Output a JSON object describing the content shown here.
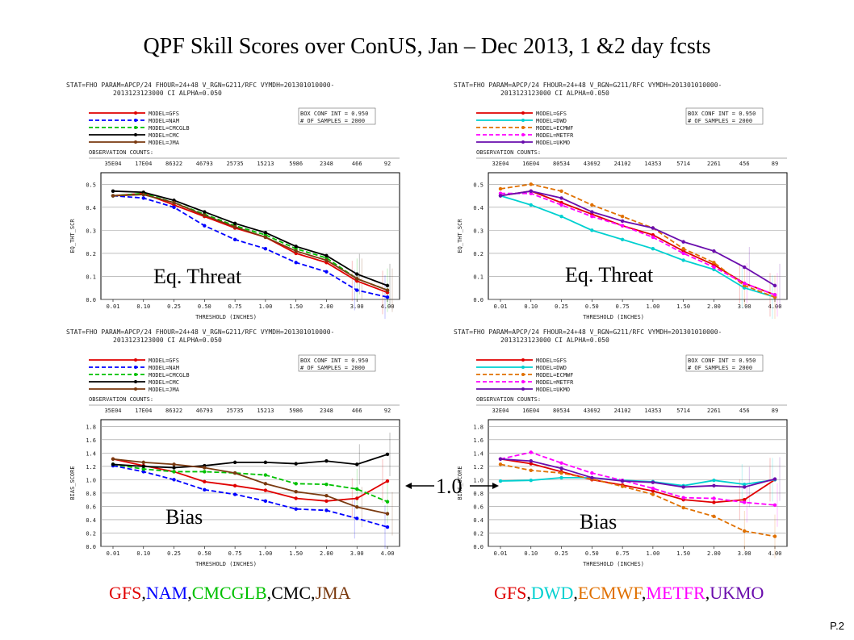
{
  "title": "QPF Skill Scores over ConUS, Jan – Dec 2013, 1 &2 day fcsts",
  "page_number": "P.2",
  "one_label": "1.0",
  "colors": {
    "GFS": "#e00000",
    "NAM": "#0000ff",
    "CMCGLB": "#00c000",
    "CMC": "#000000",
    "JMA": "#7a3a10",
    "DWD": "#00d0d0",
    "ECMWF": "#e07000",
    "METFR": "#ff00ff",
    "UKMO": "#6a0dad"
  },
  "left_legend": [
    {
      "text": "GFS",
      "color": "#e00000"
    },
    {
      "text": ",",
      "color": "#000"
    },
    {
      "text": "NAM",
      "color": "#0000ff"
    },
    {
      "text": ",",
      "color": "#000"
    },
    {
      "text": "CMCGLB",
      "color": "#00c000"
    },
    {
      "text": ",",
      "color": "#000"
    },
    {
      "text": "CMC",
      "color": "#000000"
    },
    {
      "text": ",",
      "color": "#000"
    },
    {
      "text": "JMA",
      "color": "#7a3a10"
    }
  ],
  "right_legend": [
    {
      "text": "GFS",
      "color": "#e00000"
    },
    {
      "text": ",",
      "color": "#000"
    },
    {
      "text": "DWD",
      "color": "#00d0d0"
    },
    {
      "text": ",",
      "color": "#000"
    },
    {
      "text": "ECMWF",
      "color": "#e07000"
    },
    {
      "text": ",",
      "color": "#000"
    },
    {
      "text": "METFR",
      "color": "#ff00ff"
    },
    {
      "text": ",",
      "color": "#000"
    },
    {
      "text": "UKMO",
      "color": "#6a0dad"
    }
  ],
  "chart_data": [
    {
      "type": "line",
      "header": [
        "STAT=FHO PARAM=APCP/24 FHOUR=24+48 V_RGN=G211/RFC VYMDH=201301010000-",
        "2013123123000 CI ALPHA=0.050"
      ],
      "box_text": [
        "BOX CONF INT = 0.950",
        "# OF SAMPLES = 2000"
      ],
      "obs_label": "OBSERVATION COUNTS:",
      "obs_counts": [
        "35E04",
        "17E04",
        "86322",
        "46793",
        "25735",
        "15213",
        "5986",
        "2348",
        "466",
        "92"
      ],
      "categories": [
        "0.01",
        "0.10",
        "0.25",
        "0.50",
        "0.75",
        "1.00",
        "1.50",
        "2.00",
        "3.00",
        "4.00"
      ],
      "ylabel": "EQ_THT_SCR",
      "xlabel": "THRESHOLD (INCHES)",
      "yticks": [
        "0.0",
        "0.1",
        "0.2",
        "0.3",
        "0.4",
        "0.5"
      ],
      "ylim": [
        0,
        0.55
      ],
      "big_label": "Eq. Threat",
      "series": [
        {
          "name": "MODEL=GFS",
          "color": "#e00000",
          "dash": false,
          "values": [
            0.45,
            0.46,
            0.41,
            0.36,
            0.31,
            0.27,
            0.2,
            0.16,
            0.08,
            0.03
          ]
        },
        {
          "name": "MODEL=NAM",
          "color": "#0000ff",
          "dash": true,
          "values": [
            0.45,
            0.44,
            0.4,
            0.32,
            0.26,
            0.22,
            0.16,
            0.12,
            0.04,
            0.01
          ]
        },
        {
          "name": "MODEL=CMCGLB",
          "color": "#00c000",
          "dash": true,
          "values": [
            0.45,
            0.46,
            0.42,
            0.37,
            0.32,
            0.28,
            0.22,
            0.18,
            0.09,
            0.04
          ]
        },
        {
          "name": "MODEL=CMC",
          "color": "#000000",
          "dash": false,
          "values": [
            0.47,
            0.465,
            0.43,
            0.38,
            0.33,
            0.29,
            0.23,
            0.19,
            0.11,
            0.06
          ]
        },
        {
          "name": "MODEL=JMA",
          "color": "#7a3a10",
          "dash": false,
          "values": [
            0.45,
            0.455,
            0.42,
            0.365,
            0.315,
            0.27,
            0.21,
            0.17,
            0.09,
            0.04
          ]
        }
      ]
    },
    {
      "type": "line",
      "header": [
        "STAT=FHO PARAM=APCP/24 FHOUR=24+48 V_RGN=G211/RFC VYMDH=201301010000-",
        "2013123123000 CI ALPHA=0.050"
      ],
      "box_text": [
        "BOX CONF INT = 0.950",
        "# OF SAMPLES = 2000"
      ],
      "obs_label": "OBSERVATION COUNTS:",
      "obs_counts": [
        "32E04",
        "16E04",
        "80534",
        "43692",
        "24102",
        "14353",
        "5714",
        "2261",
        "456",
        "89"
      ],
      "categories": [
        "0.01",
        "0.10",
        "0.25",
        "0.50",
        "0.75",
        "1.00",
        "1.50",
        "2.00",
        "3.00",
        "4.00"
      ],
      "ylabel": "EQ_THT_SCR",
      "xlabel": "THRESHOLD (INCHES)",
      "yticks": [
        "0.0",
        "0.1",
        "0.2",
        "0.3",
        "0.4",
        "0.5"
      ],
      "ylim": [
        0,
        0.55
      ],
      "big_label": "Eq. Threat",
      "series": [
        {
          "name": "MODEL=GFS",
          "color": "#e00000",
          "dash": false,
          "values": [
            0.45,
            0.47,
            0.42,
            0.37,
            0.32,
            0.28,
            0.21,
            0.15,
            0.07,
            0.02
          ]
        },
        {
          "name": "MODEL=DWD",
          "color": "#00d0d0",
          "dash": false,
          "values": [
            0.45,
            0.41,
            0.36,
            0.3,
            0.26,
            0.22,
            0.17,
            0.13,
            0.05,
            0.01
          ]
        },
        {
          "name": "MODEL=ECMWF",
          "color": "#e07000",
          "dash": true,
          "values": [
            0.48,
            0.5,
            0.47,
            0.41,
            0.36,
            0.31,
            0.22,
            0.16,
            0.06,
            0.01
          ]
        },
        {
          "name": "MODEL=METFR",
          "color": "#ff00ff",
          "dash": true,
          "values": [
            0.46,
            0.46,
            0.41,
            0.36,
            0.32,
            0.27,
            0.2,
            0.14,
            0.07,
            0.02
          ]
        },
        {
          "name": "MODEL=UKMO",
          "color": "#6a0dad",
          "dash": false,
          "values": [
            0.45,
            0.47,
            0.44,
            0.38,
            0.34,
            0.31,
            0.25,
            0.21,
            0.14,
            0.06
          ]
        }
      ]
    },
    {
      "type": "line",
      "header": [
        "STAT=FHO PARAM=APCP/24 FHOUR=24+48 V_RGN=G211/RFC VYMDH=201301010000-",
        "2013123123000 CI ALPHA=0.050"
      ],
      "box_text": [
        "BOX CONF INT = 0.950",
        "# OF SAMPLES = 2000"
      ],
      "obs_label": "OBSERVATION COUNTS:",
      "obs_counts": [
        "35E04",
        "17E04",
        "86322",
        "46793",
        "25735",
        "15213",
        "5986",
        "2348",
        "466",
        "92"
      ],
      "categories": [
        "0.01",
        "0.10",
        "0.25",
        "0.50",
        "0.75",
        "1.00",
        "1.50",
        "2.00",
        "3.00",
        "4.00"
      ],
      "ylabel": "BIAS_SCORE",
      "xlabel": "THRESHOLD (INCHES)",
      "yticks": [
        "0.0",
        "0.2",
        "0.4",
        "0.6",
        "0.8",
        "1.0",
        "1.2",
        "1.4",
        "1.6",
        "1.8"
      ],
      "ylim": [
        0,
        1.9
      ],
      "big_label": "Bias",
      "series": [
        {
          "name": "MODEL=GFS",
          "color": "#e00000",
          "dash": false,
          "values": [
            1.31,
            1.21,
            1.12,
            0.97,
            0.91,
            0.84,
            0.72,
            0.68,
            0.72,
            0.98
          ]
        },
        {
          "name": "MODEL=NAM",
          "color": "#0000ff",
          "dash": true,
          "values": [
            1.21,
            1.12,
            1.0,
            0.85,
            0.78,
            0.68,
            0.56,
            0.54,
            0.42,
            0.29
          ]
        },
        {
          "name": "MODEL=CMCGLB",
          "color": "#00c000",
          "dash": true,
          "values": [
            1.23,
            1.16,
            1.12,
            1.12,
            1.1,
            1.07,
            0.94,
            0.93,
            0.86,
            0.67
          ]
        },
        {
          "name": "MODEL=CMC",
          "color": "#000000",
          "dash": false,
          "values": [
            1.23,
            1.2,
            1.18,
            1.21,
            1.26,
            1.26,
            1.24,
            1.28,
            1.23,
            1.38
          ]
        },
        {
          "name": "MODEL=JMA",
          "color": "#7a3a10",
          "dash": false,
          "values": [
            1.31,
            1.26,
            1.23,
            1.18,
            1.1,
            0.94,
            0.82,
            0.76,
            0.59,
            0.49
          ]
        }
      ]
    },
    {
      "type": "line",
      "header": [
        "STAT=FHO PARAM=APCP/24 FHOUR=24+48 V_RGN=G211/RFC VYMDH=201301010000-",
        "2013123123000 CI ALPHA=0.050"
      ],
      "box_text": [
        "BOX CONF INT = 0.950",
        "# OF SAMPLES = 2000"
      ],
      "obs_label": "OBSERVATION COUNTS:",
      "obs_counts": [
        "32E04",
        "16E04",
        "80534",
        "43692",
        "24102",
        "14353",
        "5714",
        "2261",
        "456",
        "89"
      ],
      "categories": [
        "0.01",
        "0.10",
        "0.25",
        "0.50",
        "0.75",
        "1.00",
        "1.50",
        "2.00",
        "3.00",
        "4.00"
      ],
      "ylabel": "BIAS_SCORE",
      "xlabel": "THRESHOLD (INCHES)",
      "yticks": [
        "0.0",
        "0.2",
        "0.4",
        "0.6",
        "0.8",
        "1.0",
        "1.2",
        "1.4",
        "1.6",
        "1.8"
      ],
      "ylim": [
        0,
        1.9
      ],
      "big_label": "Bias",
      "series": [
        {
          "name": "MODEL=GFS",
          "color": "#e00000",
          "dash": false,
          "values": [
            1.31,
            1.24,
            1.12,
            1.0,
            0.92,
            0.83,
            0.7,
            0.66,
            0.7,
            1.0
          ]
        },
        {
          "name": "MODEL=DWD",
          "color": "#00d0d0",
          "dash": false,
          "values": [
            0.98,
            0.99,
            1.03,
            1.03,
            0.99,
            0.97,
            0.91,
            0.99,
            0.93,
            1.0
          ]
        },
        {
          "name": "MODEL=ECMWF",
          "color": "#e07000",
          "dash": true,
          "values": [
            1.23,
            1.14,
            1.1,
            1.01,
            0.9,
            0.78,
            0.58,
            0.45,
            0.23,
            0.15
          ]
        },
        {
          "name": "MODEL=METFR",
          "color": "#ff00ff",
          "dash": true,
          "values": [
            1.31,
            1.41,
            1.25,
            1.1,
            0.99,
            0.87,
            0.73,
            0.72,
            0.66,
            0.62
          ]
        },
        {
          "name": "MODEL=UKMO",
          "color": "#6a0dad",
          "dash": false,
          "values": [
            1.31,
            1.28,
            1.17,
            1.03,
            0.98,
            0.96,
            0.89,
            0.91,
            0.89,
            1.01
          ]
        }
      ]
    }
  ]
}
